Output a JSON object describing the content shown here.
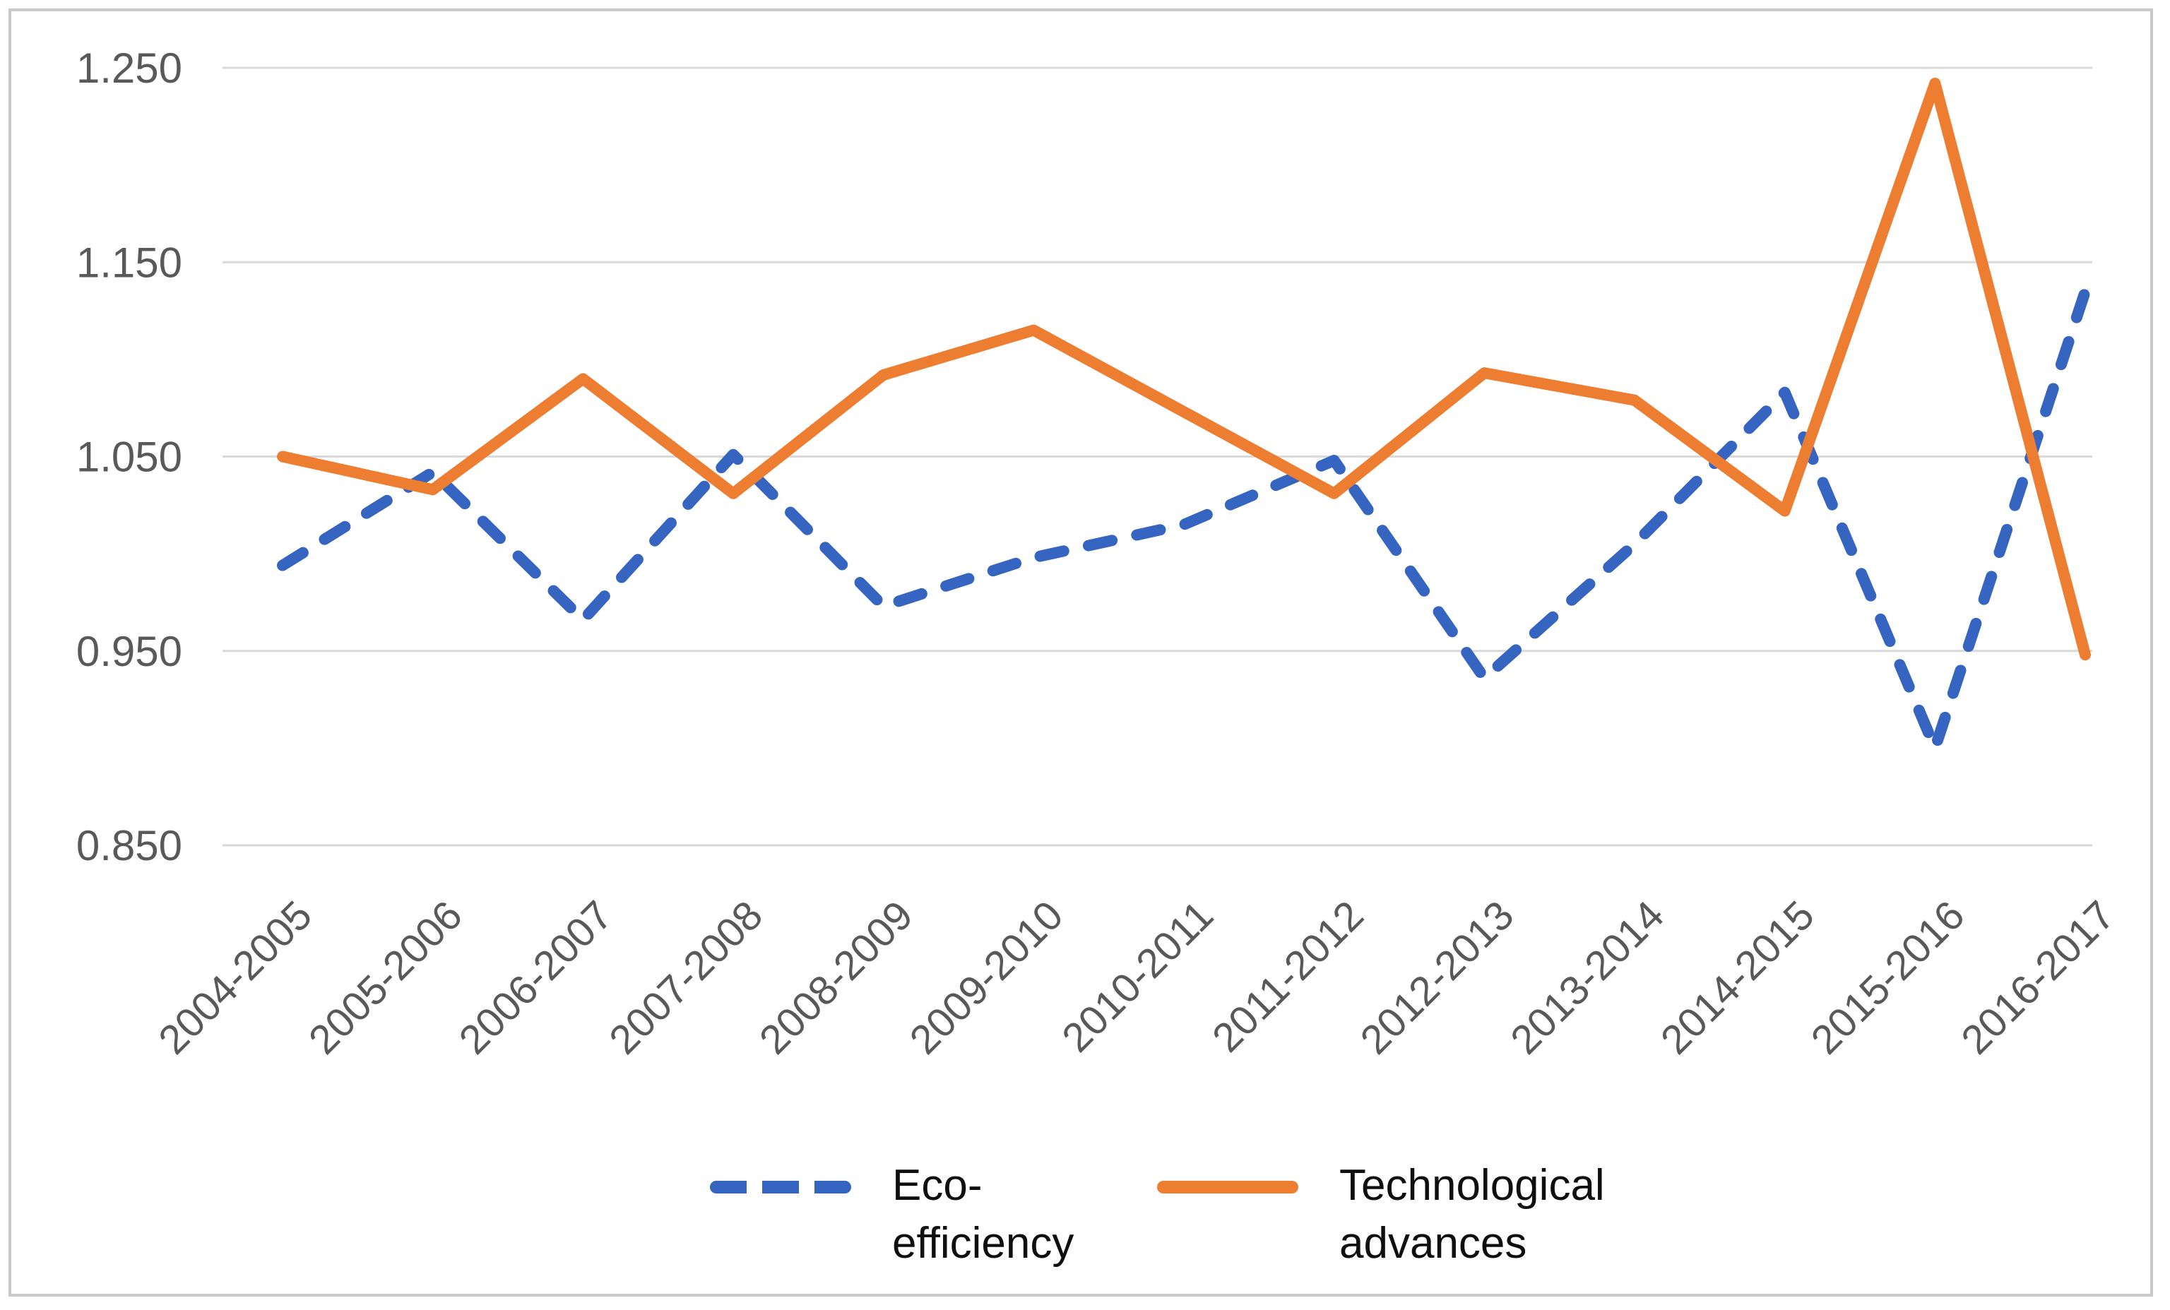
{
  "chart_data": {
    "type": "line",
    "categories": [
      "2004-2005",
      "2005-2006",
      "2006-2007",
      "2007-2008",
      "2008-2009",
      "2009-2010",
      "2010-2011",
      "2011-2012",
      "2012-2013",
      "2013-2014",
      "2014-2015",
      "2015-2016",
      "2016-2017"
    ],
    "series": [
      {
        "name": "Eco-efficiency",
        "style": "dashed",
        "color": "#3565c0",
        "values": [
          0.994,
          1.042,
          0.966,
          1.051,
          0.973,
          0.998,
          1.015,
          1.048,
          0.936,
          1.005,
          1.083,
          0.9,
          1.135
        ]
      },
      {
        "name": "Technological advances",
        "style": "solid",
        "color": "#ed7d31",
        "values": [
          1.05,
          1.033,
          1.09,
          1.031,
          1.092,
          1.115,
          1.073,
          1.031,
          1.093,
          1.079,
          1.022,
          1.242,
          0.948
        ]
      }
    ],
    "title": "",
    "xlabel": "",
    "ylabel": "",
    "ylim": [
      0.85,
      1.25
    ],
    "yticks": [
      0.85,
      0.95,
      1.05,
      1.15,
      1.25
    ],
    "ytick_labels": [
      "0.850",
      "0.950",
      "1.050",
      "1.150",
      "1.250"
    ],
    "grid": "horizontal",
    "gridline_color": "#d9d9d9",
    "axis_text_color": "#595959",
    "legend_position": "bottom",
    "legend_text_color": "#0f0f0f"
  }
}
